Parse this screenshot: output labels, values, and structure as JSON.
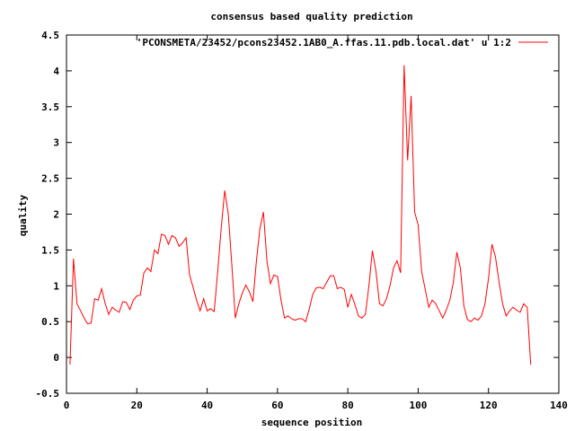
{
  "chart_data": {
    "type": "line",
    "title": "consensus based quality prediction",
    "xlabel": "sequence position",
    "ylabel": "quality",
    "xlim": [
      0,
      140
    ],
    "ylim": [
      -0.5,
      4.5
    ],
    "xticks": [
      0,
      20,
      40,
      60,
      80,
      100,
      120,
      140
    ],
    "yticks": [
      -0.5,
      0,
      0.5,
      1,
      1.5,
      2,
      2.5,
      3,
      3.5,
      4,
      4.5
    ],
    "xtick_labels": [
      "0",
      "20",
      "40",
      "60",
      "80",
      "100",
      "120",
      "140"
    ],
    "ytick_labels": [
      "-0.5",
      "0",
      "0.5",
      "1",
      "1.5",
      "2",
      "2.5",
      "3",
      "3.5",
      "4",
      "4.5"
    ],
    "legend_position": "top-right",
    "grid": false,
    "series": [
      {
        "name": "'PCONSMETA/23452/pcons23452.1AB0_A.ffas.11.pdb.local.dat' u 1:2",
        "color": "#ff0000",
        "x": [
          1,
          2,
          3,
          4,
          5,
          6,
          7,
          8,
          9,
          10,
          11,
          12,
          13,
          14,
          15,
          16,
          17,
          18,
          19,
          20,
          21,
          22,
          23,
          24,
          25,
          26,
          27,
          28,
          29,
          30,
          31,
          32,
          33,
          34,
          35,
          36,
          37,
          38,
          39,
          40,
          41,
          42,
          43,
          44,
          45,
          46,
          47,
          48,
          49,
          50,
          51,
          52,
          53,
          54,
          55,
          56,
          57,
          58,
          59,
          60,
          61,
          62,
          63,
          64,
          65,
          66,
          67,
          68,
          69,
          70,
          71,
          72,
          73,
          74,
          75,
          76,
          77,
          78,
          79,
          80,
          81,
          82,
          83,
          84,
          85,
          86,
          87,
          88,
          89,
          90,
          91,
          92,
          93,
          94,
          95,
          96,
          97,
          98,
          99,
          100,
          101,
          102,
          103,
          104,
          105,
          106,
          107,
          108,
          109,
          110,
          111,
          112,
          113,
          114,
          115,
          116,
          117,
          118,
          119,
          120,
          121,
          122,
          123,
          124,
          125,
          126,
          127,
          128,
          129,
          130,
          131,
          132
        ],
        "y": [
          -0.1,
          1.38,
          0.75,
          0.65,
          0.55,
          0.47,
          0.48,
          0.82,
          0.8,
          0.96,
          0.75,
          0.6,
          0.7,
          0.66,
          0.63,
          0.78,
          0.77,
          0.67,
          0.8,
          0.86,
          0.87,
          1.18,
          1.25,
          1.2,
          1.5,
          1.45,
          1.72,
          1.7,
          1.58,
          1.7,
          1.67,
          1.55,
          1.6,
          1.67,
          1.15,
          0.98,
          0.8,
          0.65,
          0.82,
          0.65,
          0.68,
          0.64,
          1.2,
          1.8,
          2.33,
          2.0,
          1.3,
          0.55,
          0.75,
          0.9,
          1.01,
          0.92,
          0.78,
          1.35,
          1.8,
          2.03,
          1.35,
          1.03,
          1.15,
          1.13,
          0.8,
          0.55,
          0.58,
          0.54,
          0.52,
          0.54,
          0.54,
          0.5,
          0.67,
          0.88,
          0.97,
          0.98,
          0.96,
          1.05,
          1.14,
          1.14,
          0.96,
          0.98,
          0.95,
          0.7,
          0.88,
          0.74,
          0.58,
          0.55,
          0.6,
          1.0,
          1.49,
          1.2,
          0.75,
          0.72,
          0.82,
          1.0,
          1.25,
          1.35,
          1.18,
          4.08,
          2.75,
          3.65,
          2.03,
          1.85,
          1.2,
          0.95,
          0.7,
          0.8,
          0.75,
          0.65,
          0.55,
          0.66,
          0.8,
          1.05,
          1.47,
          1.25,
          0.72,
          0.53,
          0.5,
          0.55,
          0.52,
          0.58,
          0.75,
          1.1,
          1.58,
          1.4,
          1.05,
          0.75,
          0.58,
          0.65,
          0.7,
          0.66,
          0.63,
          0.75,
          0.7,
          -0.1
        ]
      }
    ]
  }
}
